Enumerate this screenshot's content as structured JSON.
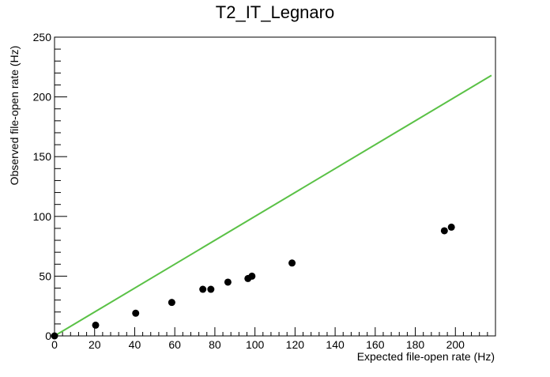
{
  "chart_data": {
    "type": "scatter",
    "title": "T2_IT_Legnaro",
    "xlabel": "Expected file-open rate (Hz)",
    "ylabel": "Observed file-open rate (Hz)",
    "xlim": [
      0,
      220
    ],
    "ylim": [
      0,
      250
    ],
    "x_ticks": [
      0,
      20,
      40,
      60,
      80,
      100,
      120,
      140,
      160,
      180,
      200
    ],
    "y_ticks": [
      0,
      50,
      100,
      150,
      200,
      250
    ],
    "grid": false,
    "legend": "none",
    "series": [
      {
        "kind": "points",
        "marker_color": "#000000",
        "points": [
          {
            "x": 0,
            "y": 0
          },
          {
            "x": 20.5,
            "y": 9
          },
          {
            "x": 40.5,
            "y": 19
          },
          {
            "x": 58.5,
            "y": 28
          },
          {
            "x": 74,
            "y": 39
          },
          {
            "x": 78,
            "y": 39
          },
          {
            "x": 86.5,
            "y": 45
          },
          {
            "x": 96.5,
            "y": 48
          },
          {
            "x": 98.5,
            "y": 50
          },
          {
            "x": 118.5,
            "y": 61
          },
          {
            "x": 194.5,
            "y": 88
          },
          {
            "x": 198,
            "y": 91
          }
        ]
      },
      {
        "kind": "line",
        "line_color": "#5ac146",
        "points": [
          {
            "x": 0,
            "y": 0
          },
          {
            "x": 218,
            "y": 218
          }
        ]
      }
    ]
  }
}
